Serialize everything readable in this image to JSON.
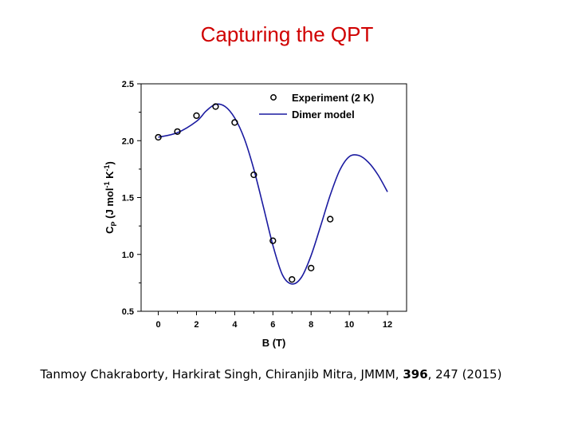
{
  "slide": {
    "title": "Capturing the QPT",
    "citation_authors": "Tanmoy Chakraborty, Harkirat Singh, Chiranjib Mitra, JMMM,",
    "citation_volume": "396",
    "citation_rest": ", 247 (2015)"
  },
  "chart_data": {
    "type": "scatter",
    "xlabel": "B (T)",
    "ylabel_main": "C",
    "ylabel_sub": "P",
    "ylabel_units": " (J mol",
    "ylabel_exp1": "-1",
    "ylabel_mid": " K",
    "ylabel_exp2": "-1",
    "ylabel_close": ")",
    "xlim": [
      -0.9,
      13
    ],
    "ylim": [
      0.5,
      2.5
    ],
    "x_ticks": [
      0,
      2,
      4,
      6,
      8,
      10,
      12
    ],
    "y_ticks": [
      0.5,
      1.0,
      1.5,
      2.0,
      2.5
    ],
    "x_tick_labels": [
      "0",
      "2",
      "4",
      "6",
      "8",
      "10",
      "12"
    ],
    "y_tick_labels": [
      "0.5",
      "1.0",
      "1.5",
      "2.0",
      "2.5"
    ],
    "grid": false,
    "legend_position": "top-right",
    "series": [
      {
        "name": "Experiment (2 K)",
        "kind": "markers",
        "color": "#000000",
        "x": [
          0,
          1,
          2,
          3,
          4,
          5,
          6,
          7,
          8,
          9
        ],
        "y": [
          2.03,
          2.08,
          2.22,
          2.3,
          2.16,
          1.7,
          1.12,
          0.78,
          0.88,
          1.31
        ]
      },
      {
        "name": "Dimer model",
        "kind": "line",
        "color": "#1a1aa0",
        "x": [
          0,
          1,
          2,
          2.5,
          3,
          3.5,
          4,
          4.5,
          5,
          5.5,
          6,
          6.5,
          7,
          7.5,
          8,
          8.5,
          9,
          9.5,
          10,
          10.5,
          11,
          11.5,
          12
        ],
        "y": [
          2.03,
          2.07,
          2.17,
          2.26,
          2.32,
          2.3,
          2.2,
          2.02,
          1.75,
          1.42,
          1.08,
          0.82,
          0.74,
          0.8,
          0.99,
          1.25,
          1.52,
          1.74,
          1.86,
          1.87,
          1.81,
          1.7,
          1.55
        ]
      }
    ]
  }
}
